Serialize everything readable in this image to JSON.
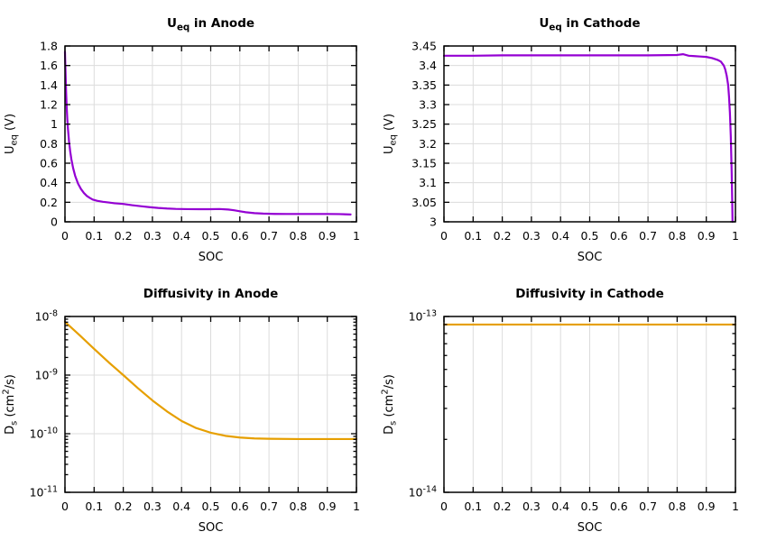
{
  "figure": {
    "background": "#ffffff",
    "grid_color": "#dcdcdc",
    "border_color": "#000000",
    "accent_purple": "#9400d3",
    "accent_orange": "#e69f00"
  },
  "chart_data": [
    {
      "id": "ueq-anode",
      "type": "line",
      "title": "U_{eq} in Anode",
      "xlabel": "SOC",
      "ylabel": "U_{eq} (V)",
      "y_scale": "linear",
      "grid": true,
      "legend": "none",
      "xlim": [
        0,
        1
      ],
      "ylim": [
        0,
        1.8
      ],
      "x_tick_values": [
        0,
        0.1,
        0.2,
        0.3,
        0.4,
        0.5,
        0.6,
        0.7,
        0.8,
        0.9,
        1
      ],
      "x_tick_labels": [
        "0",
        "0.1",
        "0.2",
        "0.3",
        "0.4",
        "0.5",
        "0.6",
        "0.7",
        "0.8",
        "0.9",
        "1"
      ],
      "y_tick_values": [
        0,
        0.2,
        0.4,
        0.6,
        0.8,
        1,
        1.2,
        1.4,
        1.6,
        1.8
      ],
      "y_tick_labels": [
        "0",
        "0.2",
        "0.4",
        "0.6",
        "0.8",
        "1",
        "1.2",
        "1.4",
        "1.6",
        "1.8"
      ],
      "line_color": "#9400d3",
      "series": [
        {
          "name": "equilibrium-potential-anode",
          "x": [
            0,
            0.002,
            0.004,
            0.006,
            0.008,
            0.01,
            0.014,
            0.018,
            0.022,
            0.028,
            0.035,
            0.045,
            0.055,
            0.065,
            0.075,
            0.085,
            0.095,
            0.11,
            0.13,
            0.15,
            0.17,
            0.2,
            0.23,
            0.26,
            0.29,
            0.32,
            0.35,
            0.38,
            0.42,
            0.46,
            0.5,
            0.53,
            0.56,
            0.58,
            0.6,
            0.62,
            0.65,
            0.68,
            0.72,
            0.76,
            0.8,
            0.85,
            0.9,
            0.94,
            0.98
          ],
          "y": [
            1.74,
            1.52,
            1.32,
            1.17,
            1.05,
            0.96,
            0.82,
            0.72,
            0.64,
            0.55,
            0.47,
            0.39,
            0.335,
            0.295,
            0.265,
            0.245,
            0.228,
            0.215,
            0.205,
            0.198,
            0.19,
            0.183,
            0.17,
            0.16,
            0.15,
            0.142,
            0.136,
            0.132,
            0.13,
            0.129,
            0.129,
            0.131,
            0.126,
            0.118,
            0.108,
            0.098,
            0.089,
            0.084,
            0.081,
            0.08,
            0.08,
            0.08,
            0.08,
            0.079,
            0.075
          ]
        }
      ]
    },
    {
      "id": "ueq-cathode",
      "type": "line",
      "title": "U_{eq} in Cathode",
      "xlabel": "SOC",
      "ylabel": "U_{eq} (V)",
      "y_scale": "linear",
      "grid": true,
      "legend": "none",
      "xlim": [
        0,
        1
      ],
      "ylim": [
        3,
        3.45
      ],
      "x_tick_values": [
        0,
        0.1,
        0.2,
        0.3,
        0.4,
        0.5,
        0.6,
        0.7,
        0.8,
        0.9,
        1
      ],
      "x_tick_labels": [
        "0",
        "0.1",
        "0.2",
        "0.3",
        "0.4",
        "0.5",
        "0.6",
        "0.7",
        "0.8",
        "0.9",
        "1"
      ],
      "y_tick_values": [
        3,
        3.05,
        3.1,
        3.15,
        3.2,
        3.25,
        3.3,
        3.35,
        3.4,
        3.45
      ],
      "y_tick_labels": [
        "3",
        "3.05",
        "3.1",
        "3.15",
        "3.2",
        "3.25",
        "3.3",
        "3.35",
        "3.4",
        "3.45"
      ],
      "line_color": "#9400d3",
      "series": [
        {
          "name": "equilibrium-potential-cathode",
          "x": [
            0,
            0.1,
            0.2,
            0.3,
            0.4,
            0.5,
            0.6,
            0.7,
            0.8,
            0.82,
            0.84,
            0.86,
            0.88,
            0.9,
            0.92,
            0.94,
            0.95,
            0.96,
            0.965,
            0.97,
            0.975,
            0.978,
            0.981,
            0.984,
            0.987,
            0.989,
            0.99
          ],
          "y": [
            3.425,
            3.425,
            3.426,
            3.426,
            3.426,
            3.426,
            3.426,
            3.426,
            3.427,
            3.429,
            3.425,
            3.424,
            3.423,
            3.422,
            3.419,
            3.414,
            3.41,
            3.4,
            3.39,
            3.374,
            3.35,
            3.32,
            3.28,
            3.22,
            3.13,
            3.05,
            3.0
          ]
        }
      ]
    },
    {
      "id": "diffusivity-anode",
      "type": "line",
      "title": "Diffusivity in Anode",
      "xlabel": "SOC",
      "ylabel": "D_{s} (cm^{2}/s)",
      "y_scale": "log",
      "grid": true,
      "legend": "none",
      "xlim": [
        0,
        1
      ],
      "ylim": [
        1e-11,
        1e-08
      ],
      "x_tick_values": [
        0,
        0.1,
        0.2,
        0.3,
        0.4,
        0.5,
        0.6,
        0.7,
        0.8,
        0.9,
        1
      ],
      "x_tick_labels": [
        "0",
        "0.1",
        "0.2",
        "0.3",
        "0.4",
        "0.5",
        "0.6",
        "0.7",
        "0.8",
        "0.9",
        "1"
      ],
      "y_tick_values": [
        1e-11,
        1e-10,
        1e-09,
        1e-08
      ],
      "y_tick_labels": [
        "10^{-11}",
        "10^{-10}",
        "10^{-9}",
        "10^{-8}"
      ],
      "line_color": "#e69f00",
      "series": [
        {
          "name": "solid-diffusivity-anode",
          "x": [
            0,
            0.05,
            0.1,
            0.15,
            0.2,
            0.25,
            0.3,
            0.35,
            0.4,
            0.45,
            0.5,
            0.55,
            0.6,
            0.65,
            0.7,
            0.8,
            0.9,
            1
          ],
          "y": [
            8.1e-09,
            4.8e-09,
            2.8e-09,
            1.65e-09,
            1e-09,
            6e-10,
            3.7e-10,
            2.4e-10,
            1.65e-10,
            1.25e-10,
            1.04e-10,
            9.2e-11,
            8.6e-11,
            8.3e-11,
            8.2e-11,
            8.1e-11,
            8.1e-11,
            8.1e-11
          ]
        }
      ]
    },
    {
      "id": "diffusivity-cathode",
      "type": "line",
      "title": "Diffusivity in Cathode",
      "xlabel": "SOC",
      "ylabel": "D_{s} (cm^{2}/s)",
      "y_scale": "log",
      "grid": true,
      "legend": "none",
      "xlim": [
        0,
        1
      ],
      "ylim": [
        1e-14,
        1e-13
      ],
      "x_tick_values": [
        0,
        0.1,
        0.2,
        0.3,
        0.4,
        0.5,
        0.6,
        0.7,
        0.8,
        0.9,
        1
      ],
      "x_tick_labels": [
        "0",
        "0.1",
        "0.2",
        "0.3",
        "0.4",
        "0.5",
        "0.6",
        "0.7",
        "0.8",
        "0.9",
        "1"
      ],
      "y_tick_values": [
        1e-14,
        1e-13
      ],
      "y_tick_labels": [
        "10^{-14}",
        "10^{-13}"
      ],
      "line_color": "#e69f00",
      "series": [
        {
          "name": "solid-diffusivity-cathode",
          "x": [
            0,
            1
          ],
          "y": [
            9e-14,
            9e-14
          ]
        }
      ]
    }
  ]
}
